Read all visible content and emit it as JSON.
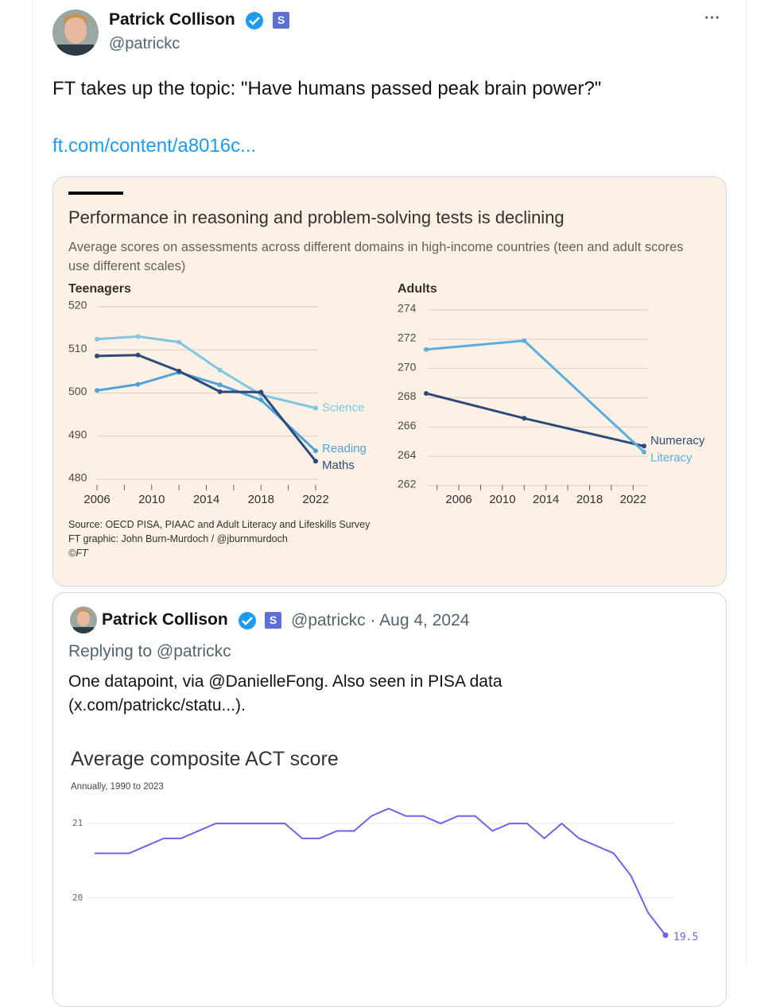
{
  "tweet": {
    "author": "Patrick Collison",
    "badge": "S",
    "handle": "@patrickc",
    "menu": "···",
    "text": "FT takes up the topic: \"Have humans passed peak brain power?\"",
    "link": "ft.com/content/a8016c..."
  },
  "ft_chart": {
    "title": "Performance in reasoning and problem-solving tests is declining",
    "subtitle": "Average scores on assessments across different domains in high-income countries (teen and adult scores use different scales)",
    "panels": [
      {
        "type": "line",
        "title": "Teenagers",
        "xlim": [
          2006,
          2022
        ],
        "xticks": [
          2006,
          2010,
          2014,
          2018,
          2022
        ],
        "xminor_ticks": [
          2008,
          2012,
          2016,
          2020
        ],
        "ylim": [
          480,
          520
        ],
        "yticks": [
          480,
          490,
          500,
          510,
          520
        ],
        "grid": true,
        "series": [
          {
            "name": "Science",
            "color": "#7fc6e2",
            "x": [
              2006,
              2009,
              2012,
              2015,
              2018,
              2022
            ],
            "values": [
              512.5,
              513.1,
              511.8,
              505.3,
              499.6,
              496.5
            ]
          },
          {
            "name": "Reading",
            "color": "#4fa2d6",
            "x": [
              2006,
              2009,
              2012,
              2015,
              2018,
              2022
            ],
            "values": [
              500.6,
              502.0,
              504.8,
              501.9,
              498.4,
              486.6
            ]
          },
          {
            "name": "Maths",
            "color": "#2b4a7c",
            "x": [
              2006,
              2009,
              2012,
              2015,
              2018,
              2022
            ],
            "values": [
              508.6,
              508.8,
              505.1,
              500.3,
              500.2,
              484.2
            ]
          }
        ]
      },
      {
        "type": "line",
        "title": "Adults",
        "xlim": [
          2003,
          2023
        ],
        "xticks": [
          2006,
          2010,
          2014,
          2018,
          2022
        ],
        "xminor_ticks": [
          2004,
          2008,
          2012,
          2016,
          2020
        ],
        "ylim": [
          262,
          274
        ],
        "yticks": [
          262,
          264,
          266,
          268,
          270,
          272,
          274
        ],
        "grid": true,
        "series": [
          {
            "name": "Numeracy",
            "color": "#2b4a7c",
            "x": [
              2003,
              2012,
              2023
            ],
            "values": [
              268.3,
              266.6,
              264.7
            ]
          },
          {
            "name": "Literacy",
            "color": "#5aaedc",
            "x": [
              2003,
              2012,
              2023
            ],
            "values": [
              271.3,
              271.9,
              264.3
            ]
          }
        ]
      }
    ],
    "source": [
      "Source: OECD PISA, PIAAC and Adult Literacy and Lifeskills Survey",
      "FT graphic: John Burn-Murdoch / @jburnmurdoch",
      "©FT"
    ]
  },
  "quote": {
    "author": "Patrick Collison",
    "badge": "S",
    "meta": "@patrickc · Aug 4, 2024",
    "replying": "Replying to @patrickc",
    "text": "One datapoint, via @DanielleFong. Also seen in PISA data (x.com/patrickc/statu...).",
    "chart_data": {
      "type": "line",
      "title": "Average composite ACT score",
      "subtitle": "Annually, 1990 to 2023",
      "xlim": [
        1990,
        2023
      ],
      "ylim": [
        19.4,
        21.3
      ],
      "yticks": [
        20,
        21
      ],
      "grid": true,
      "color": "#7b5cf0",
      "x": [
        1990,
        1991,
        1992,
        1993,
        1994,
        1995,
        1996,
        1997,
        1998,
        1999,
        2000,
        2001,
        2002,
        2003,
        2004,
        2005,
        2006,
        2007,
        2008,
        2009,
        2010,
        2011,
        2012,
        2013,
        2014,
        2015,
        2016,
        2017,
        2018,
        2019,
        2020,
        2021,
        2022,
        2023
      ],
      "values": [
        20.6,
        20.6,
        20.6,
        20.7,
        20.8,
        20.8,
        20.9,
        21.0,
        21.0,
        21.0,
        21.0,
        21.0,
        20.8,
        20.8,
        20.9,
        20.9,
        21.1,
        21.2,
        21.1,
        21.1,
        21.0,
        21.1,
        21.1,
        20.9,
        21.0,
        21.0,
        20.8,
        21.0,
        20.8,
        20.7,
        20.6,
        20.3,
        19.8,
        19.5
      ]
    }
  }
}
